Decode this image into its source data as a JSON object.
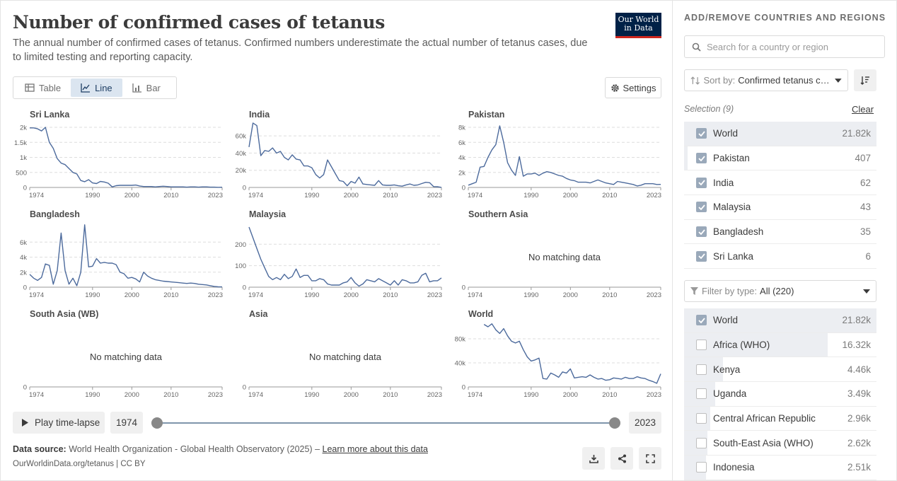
{
  "header": {
    "title": "Number of confirmed cases of tetanus",
    "subtitle": "The annual number of confirmed cases of tetanus. Confirmed numbers underestimate the actual number of tetanus cases, due to limited testing and reporting capacity.",
    "logo_line1": "Our World",
    "logo_line2": "in Data"
  },
  "tabs": [
    {
      "label": "Table",
      "icon": "table-icon",
      "active": false
    },
    {
      "label": "Line",
      "icon": "line-chart-icon",
      "active": true
    },
    {
      "label": "Bar",
      "icon": "bar-chart-icon",
      "active": false
    }
  ],
  "settings_label": "Settings",
  "no_data_text": "No matching data",
  "chart_data": [
    {
      "type": "line",
      "title": "Sri Lanka",
      "x": [
        1974,
        1975,
        1976,
        1977,
        1978,
        1979,
        1980,
        1981,
        1982,
        1983,
        1984,
        1985,
        1986,
        1987,
        1988,
        1989,
        1990,
        1991,
        1992,
        1993,
        1994,
        1995,
        1996,
        1997,
        1998,
        1999,
        2000,
        2001,
        2002,
        2003,
        2004,
        2005,
        2006,
        2007,
        2008,
        2009,
        2010,
        2011,
        2012,
        2013,
        2014,
        2015,
        2016,
        2017,
        2018,
        2019,
        2020,
        2021,
        2022,
        2023
      ],
      "y": [
        1980,
        1980,
        1950,
        1880,
        2000,
        1500,
        1300,
        960,
        810,
        760,
        630,
        500,
        450,
        230,
        190,
        260,
        150,
        130,
        200,
        180,
        140,
        20,
        60,
        70,
        70,
        70,
        70,
        80,
        50,
        30,
        30,
        30,
        20,
        30,
        40,
        30,
        20,
        20,
        20,
        20,
        10,
        20,
        20,
        10,
        20,
        20,
        10,
        10,
        5,
        6
      ],
      "ylim": [
        0,
        2000
      ],
      "yticks": [
        {
          "v": 0,
          "l": "0"
        },
        {
          "v": 500,
          "l": "500"
        },
        {
          "v": 1000,
          "l": "1k"
        },
        {
          "v": 1500,
          "l": "1.5k"
        },
        {
          "v": 2000,
          "l": "2k"
        }
      ]
    },
    {
      "type": "line",
      "title": "India",
      "x": [
        1974,
        1975,
        1976,
        1977,
        1978,
        1979,
        1980,
        1981,
        1982,
        1983,
        1984,
        1985,
        1986,
        1987,
        1988,
        1989,
        1990,
        1991,
        1992,
        1993,
        1994,
        1995,
        1996,
        1997,
        1998,
        1999,
        2000,
        2001,
        2002,
        2003,
        2004,
        2005,
        2006,
        2007,
        2008,
        2009,
        2010,
        2011,
        2012,
        2013,
        2014,
        2015,
        2016,
        2017,
        2018,
        2019,
        2020,
        2021,
        2022,
        2023
      ],
      "y": [
        47000,
        75000,
        72000,
        37000,
        43000,
        42000,
        46000,
        40000,
        42000,
        35000,
        32000,
        38000,
        33000,
        32000,
        25000,
        25000,
        23000,
        15000,
        11000,
        15000,
        32000,
        24000,
        16000,
        8000,
        7000,
        2000,
        7000,
        5000,
        12000,
        4000,
        3500,
        3000,
        2500,
        8000,
        3000,
        2500,
        2500,
        3000,
        2000,
        1500,
        3000,
        4000,
        2500,
        3000,
        4500,
        6000,
        5500,
        1000,
        800,
        62
      ],
      "ylim": [
        0,
        70000
      ],
      "yticks": [
        {
          "v": 0,
          "l": "0"
        },
        {
          "v": 20000,
          "l": "20k"
        },
        {
          "v": 40000,
          "l": "40k"
        },
        {
          "v": 60000,
          "l": "60k"
        }
      ]
    },
    {
      "type": "line",
      "title": "Pakistan",
      "x": [
        1974,
        1975,
        1976,
        1977,
        1978,
        1979,
        1980,
        1981,
        1982,
        1983,
        1984,
        1985,
        1986,
        1987,
        1988,
        1989,
        1990,
        1991,
        1992,
        1993,
        1994,
        1995,
        1996,
        1997,
        1998,
        1999,
        2000,
        2001,
        2002,
        2003,
        2004,
        2005,
        2006,
        2007,
        2008,
        2009,
        2010,
        2011,
        2012,
        2013,
        2014,
        2015,
        2016,
        2017,
        2018,
        2019,
        2020,
        2021,
        2022,
        2023
      ],
      "y": [
        300,
        500,
        700,
        2700,
        2800,
        4000,
        5000,
        5700,
        8200,
        6000,
        3300,
        2300,
        1600,
        4100,
        1500,
        1800,
        1800,
        1900,
        1600,
        1900,
        2100,
        2000,
        1800,
        1600,
        1500,
        1200,
        1000,
        900,
        700,
        700,
        700,
        600,
        800,
        1000,
        800,
        600,
        500,
        400,
        800,
        700,
        600,
        500,
        400,
        200,
        300,
        500,
        500,
        500,
        400,
        407
      ],
      "ylim": [
        0,
        8000
      ],
      "yticks": [
        {
          "v": 0,
          "l": "0"
        },
        {
          "v": 2000,
          "l": "2k"
        },
        {
          "v": 4000,
          "l": "4k"
        },
        {
          "v": 6000,
          "l": "6k"
        },
        {
          "v": 8000,
          "l": "8k"
        }
      ]
    },
    {
      "type": "line",
      "title": "Bangladesh",
      "x": [
        1974,
        1975,
        1976,
        1977,
        1978,
        1979,
        1980,
        1981,
        1982,
        1983,
        1984,
        1985,
        1986,
        1987,
        1988,
        1989,
        1990,
        1991,
        1992,
        1993,
        1994,
        1995,
        1996,
        1997,
        1998,
        1999,
        2000,
        2001,
        2002,
        2003,
        2004,
        2005,
        2006,
        2007,
        2008,
        2009,
        2010,
        2011,
        2012,
        2013,
        2014,
        2015,
        2016,
        2017,
        2018,
        2019,
        2020,
        2021,
        2022,
        2023
      ],
      "y": [
        1700,
        1200,
        900,
        1300,
        3100,
        2900,
        400,
        2200,
        7200,
        2200,
        400,
        1200,
        200,
        2000,
        8300,
        2700,
        2800,
        3800,
        3200,
        3300,
        3200,
        3200,
        3000,
        2000,
        1800,
        1200,
        1300,
        1100,
        700,
        2000,
        1500,
        1200,
        1000,
        900,
        800,
        750,
        700,
        650,
        600,
        550,
        500,
        550,
        500,
        400,
        350,
        300,
        200,
        100,
        50,
        35
      ],
      "ylim": [
        0,
        8000
      ],
      "yticks": [
        {
          "v": 0,
          "l": "0"
        },
        {
          "v": 2000,
          "l": "2k"
        },
        {
          "v": 4000,
          "l": "4k"
        },
        {
          "v": 6000,
          "l": "6k"
        }
      ]
    },
    {
      "type": "line",
      "title": "Malaysia",
      "x": [
        1974,
        1975,
        1976,
        1977,
        1978,
        1979,
        1980,
        1981,
        1982,
        1983,
        1984,
        1985,
        1986,
        1987,
        1988,
        1989,
        1990,
        1991,
        1992,
        1993,
        1994,
        1995,
        1996,
        1997,
        1998,
        1999,
        2000,
        2001,
        2002,
        2003,
        2004,
        2005,
        2006,
        2007,
        2008,
        2009,
        2010,
        2011,
        2012,
        2013,
        2014,
        2015,
        2016,
        2017,
        2018,
        2019,
        2020,
        2021,
        2022,
        2023
      ],
      "y": [
        280,
        230,
        180,
        130,
        90,
        50,
        35,
        45,
        35,
        60,
        40,
        50,
        85,
        45,
        55,
        55,
        30,
        30,
        40,
        35,
        15,
        10,
        10,
        10,
        20,
        25,
        45,
        20,
        5,
        15,
        35,
        30,
        25,
        40,
        30,
        20,
        10,
        30,
        10,
        35,
        30,
        20,
        20,
        25,
        55,
        65,
        25,
        30,
        30,
        43
      ],
      "ylim": [
        0,
        280
      ],
      "yticks": [
        {
          "v": 0,
          "l": "0"
        },
        {
          "v": 100,
          "l": "100"
        },
        {
          "v": 200,
          "l": "200"
        }
      ]
    },
    {
      "type": "line",
      "title": "Southern Asia",
      "x": [],
      "y": [],
      "ylim": [
        0,
        1
      ],
      "yticks": [
        {
          "v": 0,
          "l": "0"
        }
      ]
    },
    {
      "type": "line",
      "title": "South Asia (WB)",
      "x": [],
      "y": [],
      "ylim": [
        0,
        1
      ],
      "yticks": [
        {
          "v": 0,
          "l": "0"
        }
      ]
    },
    {
      "type": "line",
      "title": "Asia",
      "x": [],
      "y": [],
      "ylim": [
        0,
        1
      ],
      "yticks": [
        {
          "v": 0,
          "l": "0"
        }
      ]
    },
    {
      "type": "line",
      "title": "World",
      "x": [
        1978,
        1979,
        1980,
        1981,
        1982,
        1983,
        1984,
        1985,
        1986,
        1987,
        1988,
        1989,
        1990,
        1991,
        1992,
        1993,
        1994,
        1995,
        1996,
        1997,
        1998,
        1999,
        2000,
        2001,
        2002,
        2003,
        2004,
        2005,
        2006,
        2007,
        2008,
        2009,
        2010,
        2011,
        2012,
        2013,
        2014,
        2015,
        2016,
        2017,
        2018,
        2019,
        2020,
        2021,
        2022,
        2023
      ],
      "y": [
        104000,
        100000,
        105000,
        95000,
        89000,
        97000,
        85000,
        76000,
        73000,
        76000,
        62000,
        50000,
        43000,
        45000,
        48000,
        14000,
        13000,
        23000,
        20000,
        16000,
        25000,
        23000,
        30000,
        15000,
        16000,
        17000,
        16000,
        20000,
        16000,
        13000,
        14000,
        11000,
        12000,
        15000,
        14000,
        13000,
        16000,
        14000,
        14000,
        17000,
        15000,
        14000,
        11000,
        9000,
        6000,
        21820
      ],
      "ylim": [
        0,
        100000
      ],
      "yticks": [
        {
          "v": 0,
          "l": "0"
        },
        {
          "v": 40000,
          "l": "40k"
        },
        {
          "v": 80000,
          "l": "80k"
        }
      ]
    }
  ],
  "xticks": [
    "1974",
    "1990",
    "2000",
    "2010",
    "2023"
  ],
  "timeline": {
    "play_label": "Play time-lapse",
    "start_year": "1974",
    "end_year": "2023"
  },
  "footer": {
    "source_label": "Data source:",
    "source_text": "World Health Organization - Global Health Observatory (2025) –",
    "learn_more": "Learn more about this data",
    "credit": "OurWorldinData.org/tetanus | CC BY"
  },
  "side": {
    "title": "ADD/REMOVE COUNTRIES AND REGIONS",
    "search_placeholder": "Search for a country or region",
    "sort_label": "Sort by:",
    "sort_value": "Confirmed tetanus cases",
    "selection_label": "Selection (9)",
    "clear_label": "Clear",
    "selected": [
      {
        "name": "World",
        "value": "21.82k",
        "share": 1.0
      },
      {
        "name": "Pakistan",
        "value": "407",
        "share": 0.02
      },
      {
        "name": "India",
        "value": "62",
        "share": 0.0
      },
      {
        "name": "Malaysia",
        "value": "43",
        "share": 0.0
      },
      {
        "name": "Bangladesh",
        "value": "35",
        "share": 0.0
      },
      {
        "name": "Sri Lanka",
        "value": "6",
        "share": 0.0
      }
    ],
    "filter_label": "Filter by type:",
    "filter_value": "All (220)",
    "all": [
      {
        "name": "World",
        "value": "21.82k",
        "share": 1.0,
        "checked": true
      },
      {
        "name": "Africa (WHO)",
        "value": "16.32k",
        "share": 0.748,
        "checked": false
      },
      {
        "name": "Kenya",
        "value": "4.46k",
        "share": 0.204,
        "checked": false
      },
      {
        "name": "Uganda",
        "value": "3.49k",
        "share": 0.16,
        "checked": false
      },
      {
        "name": "Central African Republic",
        "value": "2.96k",
        "share": 0.136,
        "checked": false
      },
      {
        "name": "South-East Asia (WHO)",
        "value": "2.62k",
        "share": 0.12,
        "checked": false
      },
      {
        "name": "Indonesia",
        "value": "2.51k",
        "share": 0.115,
        "checked": false
      }
    ]
  },
  "colors": {
    "line": "#4c6a9c",
    "grid": "#dddddd",
    "axis": "#999999",
    "accent": "#1d3d63"
  }
}
